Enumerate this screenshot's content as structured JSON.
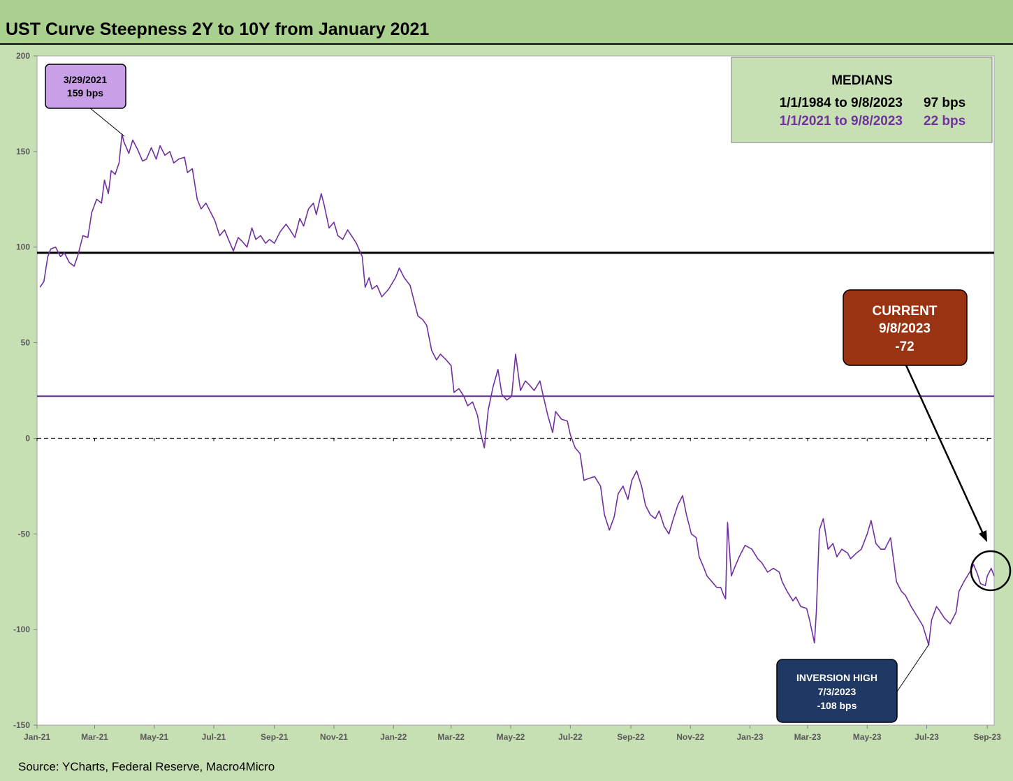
{
  "title": "UST Curve Steepness 2Y to 10Y from January 2021",
  "source": "Source: YCharts, Federal Reserve, Macro4Micro",
  "colors": {
    "frame": "#c6e0b4",
    "title_bar": "#a9d08e",
    "series": "#7030a0",
    "median_long": "#000000",
    "median_short": "#7030a0",
    "callout_peak": "#c9a0e8",
    "callout_current": "#993311",
    "callout_low": "#1f3864"
  },
  "medians_box": {
    "heading": "MEDIANS",
    "rows": [
      {
        "period": "1/1/1984 to 9/8/2023",
        "value": "97 bps",
        "color": "#000000"
      },
      {
        "period": "1/1/2021 to 9/8/2023",
        "value": "22 bps",
        "color": "#7030a0"
      }
    ]
  },
  "callouts": {
    "peak": {
      "line1": "3/29/2021",
      "line2": "159 bps",
      "date": "2021-03-29",
      "value": 159
    },
    "current": {
      "line1": "CURRENT",
      "line2": "9/8/2023",
      "line3": "-72",
      "date": "2023-09-08",
      "value": -72
    },
    "low": {
      "line1": "INVERSION HIGH",
      "line2": "7/3/2023",
      "line3": "-108 bps",
      "date": "2023-07-03",
      "value": -108
    }
  },
  "chart_data": {
    "type": "line",
    "ylim": [
      -150,
      200
    ],
    "xlim": [
      "2021-01-01",
      "2023-09-08"
    ],
    "yticks": [
      200,
      150,
      100,
      50,
      0,
      -50,
      -100,
      -150
    ],
    "xticks": [
      {
        "date": "2021-01-01",
        "label": "Jan-21"
      },
      {
        "date": "2021-03-01",
        "label": "Mar-21"
      },
      {
        "date": "2021-05-01",
        "label": "May-21"
      },
      {
        "date": "2021-07-01",
        "label": "Jul-21"
      },
      {
        "date": "2021-09-01",
        "label": "Sep-21"
      },
      {
        "date": "2021-11-01",
        "label": "Nov-21"
      },
      {
        "date": "2022-01-01",
        "label": "Jan-22"
      },
      {
        "date": "2022-03-01",
        "label": "Mar-22"
      },
      {
        "date": "2022-05-01",
        "label": "May-22"
      },
      {
        "date": "2022-07-01",
        "label": "Jul-22"
      },
      {
        "date": "2022-09-01",
        "label": "Sep-22"
      },
      {
        "date": "2022-11-01",
        "label": "Nov-22"
      },
      {
        "date": "2023-01-01",
        "label": "Jan-23"
      },
      {
        "date": "2023-03-01",
        "label": "Mar-23"
      },
      {
        "date": "2023-05-01",
        "label": "May-23"
      },
      {
        "date": "2023-07-01",
        "label": "Jul-23"
      },
      {
        "date": "2023-09-01",
        "label": "Sep-23"
      }
    ],
    "reference_lines": [
      {
        "value": 97,
        "style": "solid-thick",
        "color": "#000000"
      },
      {
        "value": 22,
        "style": "solid",
        "color": "#7030a0"
      },
      {
        "value": 0,
        "style": "dashed",
        "color": "#000000"
      }
    ],
    "series": [
      {
        "color": "#7030a0",
        "points": [
          [
            "2021-01-04",
            79
          ],
          [
            "2021-01-08",
            82
          ],
          [
            "2021-01-12",
            95
          ],
          [
            "2021-01-15",
            99
          ],
          [
            "2021-01-20",
            100
          ],
          [
            "2021-01-25",
            95
          ],
          [
            "2021-01-29",
            97
          ],
          [
            "2021-02-03",
            92
          ],
          [
            "2021-02-08",
            90
          ],
          [
            "2021-02-12",
            96
          ],
          [
            "2021-02-17",
            106
          ],
          [
            "2021-02-22",
            105
          ],
          [
            "2021-02-26",
            118
          ],
          [
            "2021-03-03",
            125
          ],
          [
            "2021-03-08",
            123
          ],
          [
            "2021-03-11",
            135
          ],
          [
            "2021-03-15",
            128
          ],
          [
            "2021-03-18",
            140
          ],
          [
            "2021-03-22",
            138
          ],
          [
            "2021-03-26",
            144
          ],
          [
            "2021-03-29",
            159
          ],
          [
            "2021-03-31",
            155
          ],
          [
            "2021-04-05",
            149
          ],
          [
            "2021-04-09",
            156
          ],
          [
            "2021-04-14",
            151
          ],
          [
            "2021-04-19",
            145
          ],
          [
            "2021-04-23",
            146
          ],
          [
            "2021-04-28",
            152
          ],
          [
            "2021-05-03",
            146
          ],
          [
            "2021-05-07",
            153
          ],
          [
            "2021-05-12",
            148
          ],
          [
            "2021-05-17",
            150
          ],
          [
            "2021-05-21",
            144
          ],
          [
            "2021-05-26",
            146
          ],
          [
            "2021-06-01",
            147
          ],
          [
            "2021-06-04",
            139
          ],
          [
            "2021-06-09",
            141
          ],
          [
            "2021-06-14",
            125
          ],
          [
            "2021-06-18",
            120
          ],
          [
            "2021-06-23",
            123
          ],
          [
            "2021-06-28",
            118
          ],
          [
            "2021-07-02",
            114
          ],
          [
            "2021-07-07",
            106
          ],
          [
            "2021-07-12",
            109
          ],
          [
            "2021-07-16",
            104
          ],
          [
            "2021-07-21",
            98
          ],
          [
            "2021-07-26",
            105
          ],
          [
            "2021-07-30",
            103
          ],
          [
            "2021-08-04",
            100
          ],
          [
            "2021-08-09",
            110
          ],
          [
            "2021-08-13",
            104
          ],
          [
            "2021-08-18",
            106
          ],
          [
            "2021-08-23",
            102
          ],
          [
            "2021-08-27",
            104
          ],
          [
            "2021-09-01",
            102
          ],
          [
            "2021-09-07",
            108
          ],
          [
            "2021-09-13",
            112
          ],
          [
            "2021-09-17",
            109
          ],
          [
            "2021-09-22",
            105
          ],
          [
            "2021-09-27",
            115
          ],
          [
            "2021-10-01",
            111
          ],
          [
            "2021-10-06",
            120
          ],
          [
            "2021-10-11",
            123
          ],
          [
            "2021-10-14",
            117
          ],
          [
            "2021-10-19",
            128
          ],
          [
            "2021-10-22",
            122
          ],
          [
            "2021-10-27",
            110
          ],
          [
            "2021-11-01",
            113
          ],
          [
            "2021-11-05",
            106
          ],
          [
            "2021-11-10",
            104
          ],
          [
            "2021-11-15",
            109
          ],
          [
            "2021-11-19",
            106
          ],
          [
            "2021-11-24",
            102
          ],
          [
            "2021-11-30",
            95
          ],
          [
            "2021-12-03",
            79
          ],
          [
            "2021-12-07",
            84
          ],
          [
            "2021-12-10",
            78
          ],
          [
            "2021-12-15",
            80
          ],
          [
            "2021-12-20",
            74
          ],
          [
            "2021-12-27",
            78
          ],
          [
            "2022-01-03",
            84
          ],
          [
            "2022-01-07",
            89
          ],
          [
            "2022-01-12",
            84
          ],
          [
            "2022-01-18",
            80
          ],
          [
            "2022-01-21",
            74
          ],
          [
            "2022-01-26",
            64
          ],
          [
            "2022-01-31",
            62
          ],
          [
            "2022-02-04",
            59
          ],
          [
            "2022-02-09",
            46
          ],
          [
            "2022-02-14",
            41
          ],
          [
            "2022-02-18",
            44
          ],
          [
            "2022-02-24",
            41
          ],
          [
            "2022-03-01",
            38
          ],
          [
            "2022-03-04",
            24
          ],
          [
            "2022-03-09",
            26
          ],
          [
            "2022-03-14",
            22
          ],
          [
            "2022-03-18",
            17
          ],
          [
            "2022-03-23",
            19
          ],
          [
            "2022-03-28",
            12
          ],
          [
            "2022-03-31",
            3
          ],
          [
            "2022-04-04",
            -5
          ],
          [
            "2022-04-08",
            15
          ],
          [
            "2022-04-13",
            27
          ],
          [
            "2022-04-18",
            36
          ],
          [
            "2022-04-22",
            23
          ],
          [
            "2022-04-27",
            20
          ],
          [
            "2022-05-02",
            22
          ],
          [
            "2022-05-06",
            44
          ],
          [
            "2022-05-11",
            25
          ],
          [
            "2022-05-16",
            30
          ],
          [
            "2022-05-20",
            28
          ],
          [
            "2022-05-25",
            25
          ],
          [
            "2022-05-31",
            30
          ],
          [
            "2022-06-03",
            23
          ],
          [
            "2022-06-08",
            12
          ],
          [
            "2022-06-13",
            3
          ],
          [
            "2022-06-16",
            14
          ],
          [
            "2022-06-22",
            10
          ],
          [
            "2022-06-28",
            9
          ],
          [
            "2022-07-01",
            2
          ],
          [
            "2022-07-06",
            -5
          ],
          [
            "2022-07-11",
            -8
          ],
          [
            "2022-07-15",
            -22
          ],
          [
            "2022-07-20",
            -21
          ],
          [
            "2022-07-26",
            -20
          ],
          [
            "2022-08-01",
            -25
          ],
          [
            "2022-08-05",
            -40
          ],
          [
            "2022-08-10",
            -48
          ],
          [
            "2022-08-15",
            -41
          ],
          [
            "2022-08-19",
            -29
          ],
          [
            "2022-08-24",
            -25
          ],
          [
            "2022-08-29",
            -32
          ],
          [
            "2022-09-02",
            -22
          ],
          [
            "2022-09-07",
            -17
          ],
          [
            "2022-09-12",
            -25
          ],
          [
            "2022-09-16",
            -35
          ],
          [
            "2022-09-21",
            -40
          ],
          [
            "2022-09-26",
            -42
          ],
          [
            "2022-09-30",
            -38
          ],
          [
            "2022-10-05",
            -46
          ],
          [
            "2022-10-10",
            -50
          ],
          [
            "2022-10-14",
            -43
          ],
          [
            "2022-10-19",
            -35
          ],
          [
            "2022-10-24",
            -30
          ],
          [
            "2022-10-28",
            -40
          ],
          [
            "2022-11-02",
            -50
          ],
          [
            "2022-11-07",
            -52
          ],
          [
            "2022-11-10",
            -62
          ],
          [
            "2022-11-15",
            -68
          ],
          [
            "2022-11-18",
            -72
          ],
          [
            "2022-11-23",
            -75
          ],
          [
            "2022-11-28",
            -78
          ],
          [
            "2022-12-02",
            -78
          ],
          [
            "2022-12-05",
            -82
          ],
          [
            "2022-12-07",
            -84
          ],
          [
            "2022-12-09",
            -44
          ],
          [
            "2022-12-13",
            -72
          ],
          [
            "2022-12-16",
            -68
          ],
          [
            "2022-12-21",
            -62
          ],
          [
            "2022-12-27",
            -56
          ],
          [
            "2023-01-03",
            -58
          ],
          [
            "2023-01-09",
            -63
          ],
          [
            "2023-01-13",
            -65
          ],
          [
            "2023-01-19",
            -70
          ],
          [
            "2023-01-25",
            -68
          ],
          [
            "2023-01-31",
            -70
          ],
          [
            "2023-02-03",
            -75
          ],
          [
            "2023-02-08",
            -80
          ],
          [
            "2023-02-14",
            -85
          ],
          [
            "2023-02-17",
            -83
          ],
          [
            "2023-02-22",
            -88
          ],
          [
            "2023-02-28",
            -89
          ],
          [
            "2023-03-03",
            -95
          ],
          [
            "2023-03-08",
            -107
          ],
          [
            "2023-03-10",
            -90
          ],
          [
            "2023-03-13",
            -48
          ],
          [
            "2023-03-17",
            -42
          ],
          [
            "2023-03-22",
            -58
          ],
          [
            "2023-03-27",
            -55
          ],
          [
            "2023-03-31",
            -62
          ],
          [
            "2023-04-05",
            -58
          ],
          [
            "2023-04-11",
            -60
          ],
          [
            "2023-04-14",
            -63
          ],
          [
            "2023-04-20",
            -60
          ],
          [
            "2023-04-25",
            -58
          ],
          [
            "2023-05-01",
            -50
          ],
          [
            "2023-05-05",
            -43
          ],
          [
            "2023-05-10",
            -55
          ],
          [
            "2023-05-15",
            -58
          ],
          [
            "2023-05-19",
            -58
          ],
          [
            "2023-05-25",
            -52
          ],
          [
            "2023-05-31",
            -75
          ],
          [
            "2023-06-05",
            -80
          ],
          [
            "2023-06-09",
            -82
          ],
          [
            "2023-06-15",
            -88
          ],
          [
            "2023-06-21",
            -93
          ],
          [
            "2023-06-27",
            -98
          ],
          [
            "2023-06-30",
            -103
          ],
          [
            "2023-07-03",
            -108
          ],
          [
            "2023-07-06",
            -95
          ],
          [
            "2023-07-11",
            -88
          ],
          [
            "2023-07-14",
            -90
          ],
          [
            "2023-07-19",
            -94
          ],
          [
            "2023-07-25",
            -97
          ],
          [
            "2023-07-31",
            -91
          ],
          [
            "2023-08-03",
            -80
          ],
          [
            "2023-08-08",
            -75
          ],
          [
            "2023-08-14",
            -70
          ],
          [
            "2023-08-18",
            -66
          ],
          [
            "2023-08-22",
            -71
          ],
          [
            "2023-08-25",
            -76
          ],
          [
            "2023-08-30",
            -77
          ],
          [
            "2023-09-01",
            -72
          ],
          [
            "2023-09-05",
            -68
          ],
          [
            "2023-09-08",
            -72
          ]
        ]
      }
    ]
  }
}
